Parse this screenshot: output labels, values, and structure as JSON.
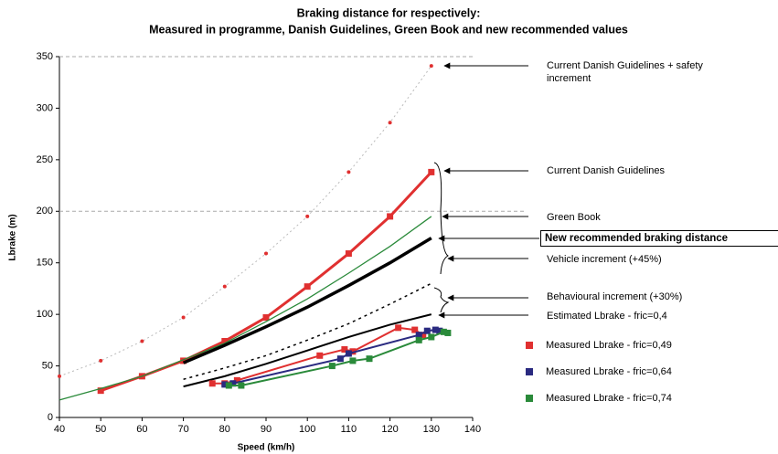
{
  "chart_data": {
    "type": "line",
    "title": "Braking distance for respectively:",
    "subtitle": "Measured in programme, Danish Guidelines, Green Book and new recommended values",
    "x_label": "Speed (km/h)",
    "y_label": "Lbrake (m)",
    "xlim": [
      40,
      140
    ],
    "xticks": [
      40,
      50,
      60,
      70,
      80,
      90,
      100,
      110,
      120,
      130,
      140
    ],
    "ylim": [
      0,
      350
    ],
    "yticks": [
      0,
      50,
      100,
      150,
      200,
      250,
      300,
      350
    ],
    "series": [
      {
        "name": "Current Danish Guidelines + safety increment",
        "color": "#e03030",
        "line_style": "dotted",
        "line_width": 1,
        "marker": "dot",
        "x": [
          40,
          50,
          60,
          70,
          80,
          90,
          100,
          110,
          120,
          130
        ],
        "values": [
          40,
          55,
          74,
          97,
          127,
          159,
          195,
          238,
          286,
          341
        ]
      },
      {
        "name": "Current Danish Guidelines",
        "color": "#e03030",
        "line_style": "solid",
        "line_width": 3,
        "marker": "square",
        "x": [
          50,
          60,
          70,
          80,
          90,
          100,
          110,
          120,
          130
        ],
        "values": [
          26,
          40,
          55,
          74,
          97,
          127,
          159,
          195,
          238
        ]
      },
      {
        "name": "Green Book",
        "color": "#2a8a3a",
        "line_style": "solid",
        "line_width": 1.3,
        "marker": "none",
        "x": [
          40,
          50,
          60,
          70,
          80,
          90,
          100,
          110,
          120,
          130
        ],
        "values": [
          17,
          28,
          40,
          56,
          72,
          93,
          115,
          140,
          166,
          195
        ]
      },
      {
        "name": "New recommended braking distance",
        "color": "#000000",
        "line_style": "solid",
        "line_width": 3.5,
        "marker": "none",
        "x": [
          70,
          80,
          90,
          100,
          110,
          120,
          130
        ],
        "values": [
          53,
          70,
          88,
          107,
          128,
          150,
          174
        ]
      },
      {
        "color": "#000000",
        "line_style": "dotted",
        "line_width": 1.5,
        "marker": "none",
        "x": [
          70,
          80,
          90,
          100,
          110,
          120,
          130
        ],
        "values": [
          37,
          48,
          60,
          75,
          91,
          110,
          130
        ]
      },
      {
        "name": "Estimated Lbrake - fric=0,4",
        "color": "#000000",
        "line_style": "solid",
        "line_width": 2,
        "marker": "none",
        "x": [
          70,
          80,
          90,
          100,
          110,
          120,
          130
        ],
        "values": [
          30,
          40,
          52,
          65,
          78,
          90,
          100
        ]
      },
      {
        "name": "Measured Lbrake - fric=0,49",
        "color": "#e03030",
        "line_style": "solid",
        "line_width": 2,
        "marker": "square",
        "legend": true,
        "x": [
          77,
          80,
          83,
          103,
          109,
          111,
          122,
          126,
          128
        ],
        "values": [
          33,
          33,
          36,
          60,
          66,
          64,
          87,
          85,
          80
        ]
      },
      {
        "name": "Measured Lbrake - fric=0,64",
        "color": "#2a2a80",
        "line_style": "solid",
        "line_width": 2,
        "marker": "square",
        "legend": true,
        "x": [
          80,
          82,
          108,
          110,
          127,
          129,
          131,
          132
        ],
        "values": [
          32,
          33,
          57,
          62,
          80,
          84,
          85,
          84
        ]
      },
      {
        "name": "Measured Lbrake - fric=0,74",
        "color": "#2a8a3a",
        "line_style": "solid",
        "line_width": 2,
        "marker": "square",
        "legend": true,
        "x": [
          81,
          84,
          106,
          111,
          115,
          127,
          130,
          133,
          134
        ],
        "values": [
          31,
          31,
          50,
          55,
          57,
          75,
          78,
          83,
          82
        ]
      }
    ],
    "annotations": [
      "Vehicle increment (+45%)",
      "Behavioural increment (+30%)"
    ]
  }
}
